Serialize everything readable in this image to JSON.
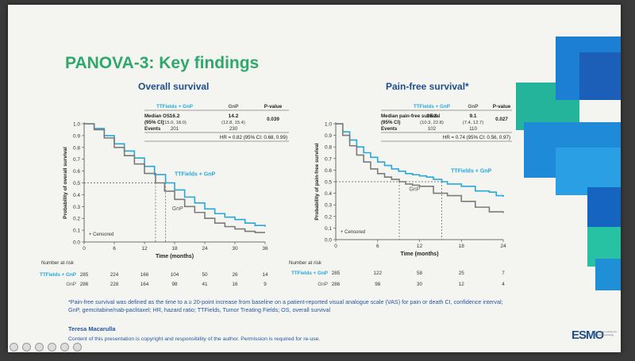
{
  "slide": {
    "title": "PANOVA-3: Key findings",
    "footnote": "*Pain-free survival was defined as the time to a ≥ 20-point increase from baseline on a patient-reported visual analogue scale (VAS) for pain or death CI, confidence interval; GnP, gemcitabine/nab-paclitaxel; HR, hazard ratio; TTFields, Tumor Treating Fields; OS, overall survival",
    "author": "Teresa Macarulla",
    "copyright": "Content of this presentation is copyright and responsibility of the author. Permission is required for re-use.",
    "logo": "ESMO",
    "logo_sub": "european society for medical oncology",
    "colors": {
      "ttfields": "#27a9d8",
      "gnp": "#7b7b7b",
      "title": "#2fa86c",
      "panel_title": "#1f4e8c"
    }
  },
  "chart_data": [
    {
      "type": "line",
      "title": "Overall survival",
      "xlabel": "Time (months)",
      "ylabel": "Probability of overall survival",
      "xlim": [
        0,
        36
      ],
      "ylim": [
        0,
        1.0
      ],
      "xticks": [
        0,
        6,
        12,
        18,
        24,
        30,
        36
      ],
      "yticks": [
        0,
        0.1,
        0.2,
        0.3,
        0.4,
        0.5,
        0.6,
        0.7,
        0.8,
        0.9,
        1.0
      ],
      "series": [
        {
          "name": "TTFields + GnP",
          "color": "#27a9d8",
          "label_on_chart": "TTFields + GnP",
          "x": [
            0,
            2,
            4,
            6,
            8,
            10,
            12,
            14,
            16.2,
            18,
            20,
            22,
            24,
            26,
            28,
            30,
            32,
            34,
            36
          ],
          "y": [
            1.0,
            0.96,
            0.9,
            0.83,
            0.77,
            0.71,
            0.64,
            0.57,
            0.5,
            0.44,
            0.38,
            0.33,
            0.28,
            0.24,
            0.21,
            0.19,
            0.16,
            0.14,
            0.13
          ]
        },
        {
          "name": "GnP",
          "color": "#7b7b7b",
          "label_on_chart": "GnP",
          "x": [
            0,
            2,
            4,
            6,
            8,
            10,
            12,
            14.2,
            16,
            18,
            20,
            22,
            24,
            26,
            28,
            30,
            32,
            34,
            36
          ],
          "y": [
            1.0,
            0.95,
            0.88,
            0.8,
            0.73,
            0.66,
            0.58,
            0.5,
            0.43,
            0.36,
            0.3,
            0.25,
            0.2,
            0.16,
            0.13,
            0.11,
            0.09,
            0.08,
            0.08
          ]
        }
      ],
      "medians": [
        14.2,
        16.2
      ],
      "censored_label": "+ Censored",
      "table": {
        "headers": [
          "",
          "TTFields + GnP",
          "GnP",
          "P-value"
        ],
        "rows": [
          [
            "Median OS (95% CI)",
            "16.2 (15.0, 18.0)",
            "14.2 (12.8, 15.4)",
            "0.039"
          ],
          [
            "Events",
            "201",
            "230",
            ""
          ]
        ],
        "hr": "HR = 0.82 (95% CI: 0.68, 0.99)"
      },
      "risk": {
        "label": "Number at risk",
        "times": [
          0,
          6,
          12,
          18,
          24,
          30,
          36
        ],
        "rows": [
          {
            "name": "TTFields + GnP",
            "values": [
              "285",
              "224",
              "166",
              "104",
              "50",
              "26",
              "14"
            ]
          },
          {
            "name": "GnP",
            "values": [
              "286",
              "228",
              "164",
              "98",
              "41",
              "16",
              "9"
            ]
          }
        ]
      }
    },
    {
      "type": "line",
      "title": "Pain-free survival*",
      "xlabel": "Time (months)",
      "ylabel": "Probability of pain-free survival",
      "xlim": [
        0,
        24
      ],
      "ylim": [
        0,
        1.0
      ],
      "xticks": [
        0,
        6,
        12,
        18,
        24
      ],
      "yticks": [
        0,
        0.1,
        0.2,
        0.3,
        0.4,
        0.5,
        0.6,
        0.7,
        0.8,
        0.9,
        1.0
      ],
      "series": [
        {
          "name": "TTFields + GnP",
          "color": "#27a9d8",
          "label_on_chart": "TTFields + GnP",
          "x": [
            0,
            1,
            2,
            3,
            4,
            5,
            6,
            7,
            8,
            9,
            10,
            11,
            12,
            13,
            14,
            15.2,
            16,
            18,
            20,
            22,
            23,
            24
          ],
          "y": [
            1.0,
            0.93,
            0.86,
            0.8,
            0.75,
            0.71,
            0.67,
            0.64,
            0.61,
            0.59,
            0.57,
            0.56,
            0.55,
            0.54,
            0.52,
            0.5,
            0.48,
            0.46,
            0.42,
            0.41,
            0.38,
            0.37
          ]
        },
        {
          "name": "GnP",
          "color": "#7b7b7b",
          "label_on_chart": "GnP",
          "x": [
            0,
            1,
            2,
            3,
            4,
            5,
            6,
            7,
            8,
            9.1,
            10,
            11,
            12,
            14,
            16,
            18,
            20,
            22,
            24
          ],
          "y": [
            1.0,
            0.9,
            0.81,
            0.73,
            0.67,
            0.61,
            0.57,
            0.54,
            0.52,
            0.5,
            0.48,
            0.47,
            0.46,
            0.4,
            0.38,
            0.33,
            0.28,
            0.24,
            0.23
          ]
        }
      ],
      "medians": [
        9.1,
        15.2
      ],
      "censored_label": "+ Censored",
      "table": {
        "headers": [
          "",
          "TTFields + GnP",
          "GnP",
          "P-value"
        ],
        "rows": [
          [
            "Median pain-free survival (95% CI)",
            "15.2 (10.3, 22.8)",
            "9.1 (7.4, 12.7)",
            "0.027"
          ],
          [
            "Events",
            "102",
            "110",
            ""
          ]
        ],
        "hr": "HR = 0.74 (95% CI: 0.56, 0.97)"
      },
      "risk": {
        "label": "Number at risk",
        "times": [
          0,
          6,
          12,
          18,
          24
        ],
        "rows": [
          {
            "name": "TTFields + GnP",
            "values": [
              "285",
              "122",
              "58",
              "25",
              "7"
            ]
          },
          {
            "name": "GnP",
            "values": [
              "286",
              "98",
              "30",
              "12",
              "4"
            ]
          }
        ]
      }
    }
  ]
}
